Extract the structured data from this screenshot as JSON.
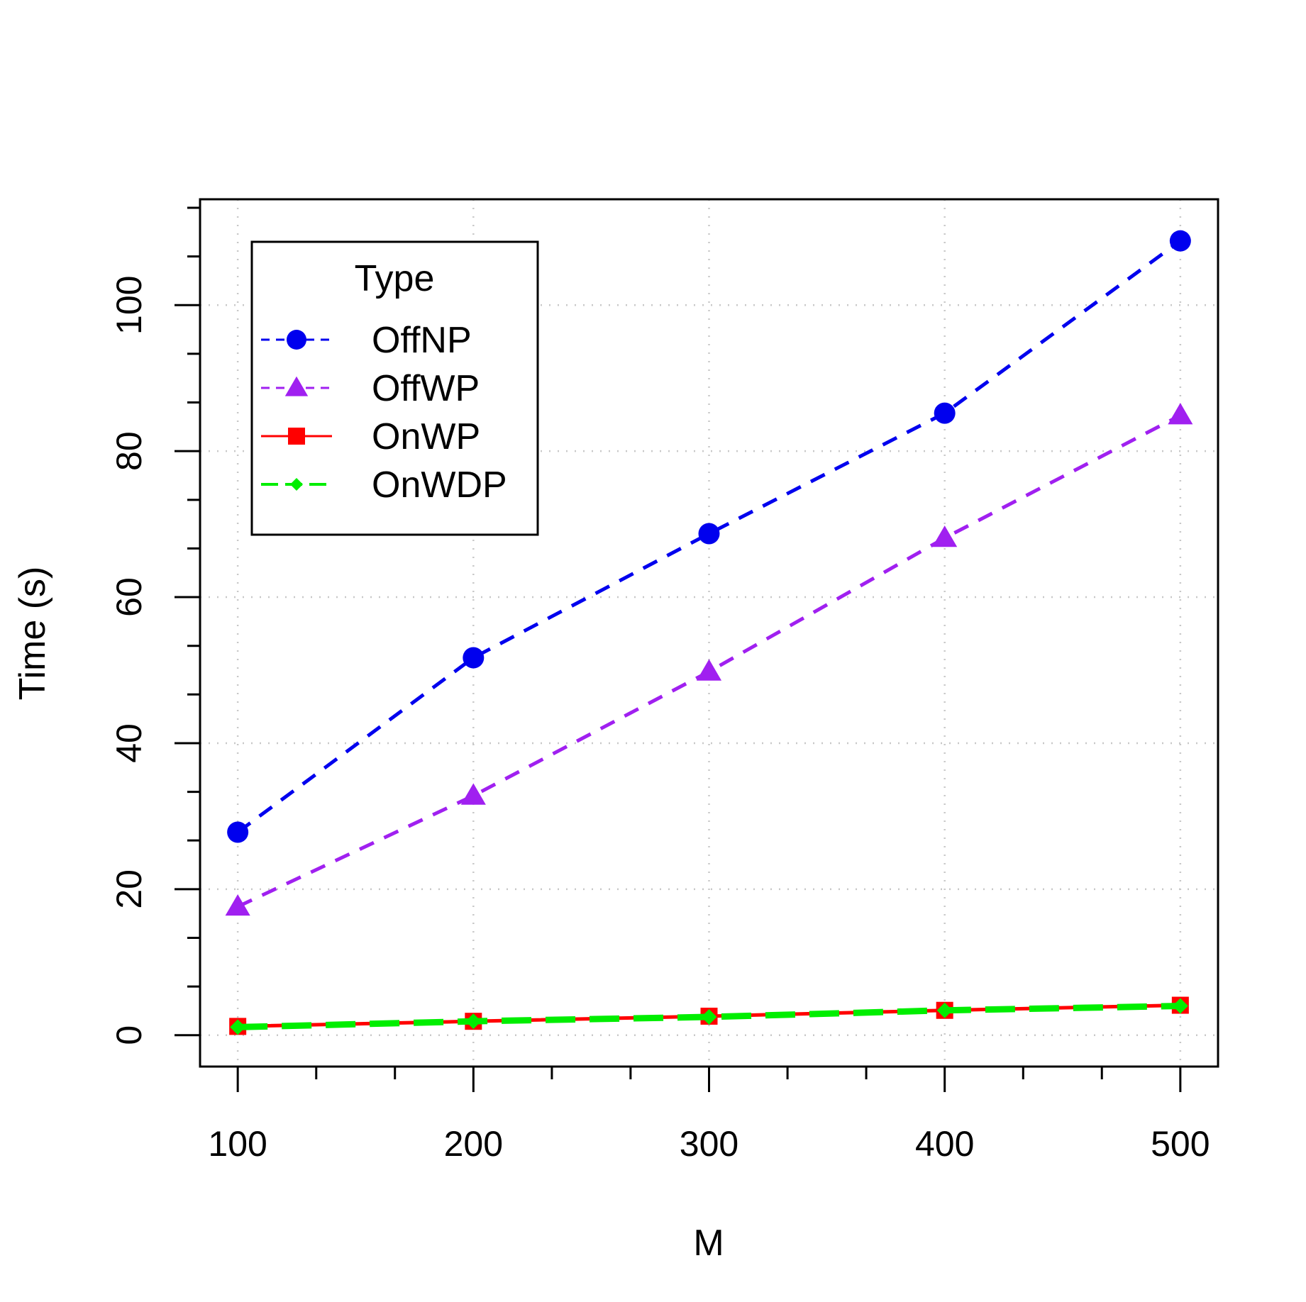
{
  "chart_data": {
    "type": "line",
    "title": "",
    "xlabel": "M",
    "ylabel": "Time (s)",
    "x": [
      100,
      200,
      300,
      400,
      500
    ],
    "xlim": [
      84,
      516
    ],
    "ylim": [
      -4.3,
      114.5
    ],
    "x_ticks": [
      100,
      200,
      300,
      400,
      500
    ],
    "x_minor_ticks": [
      133.3,
      166.7,
      233.3,
      266.7,
      333.3,
      366.7,
      433.3,
      466.7
    ],
    "y_ticks": [
      0,
      20,
      40,
      60,
      80,
      100
    ],
    "y_minor_ticks": [
      6.67,
      13.33,
      26.67,
      33.33,
      46.67,
      53.33,
      66.67,
      73.33,
      86.67,
      93.33,
      106.67,
      113.33
    ],
    "grid": true,
    "legend": {
      "title": "Type",
      "position": "top-left"
    },
    "series": [
      {
        "name": "OffNP",
        "values": [
          27.8,
          51.7,
          68.7,
          85.2,
          108.8
        ],
        "color": "#0000ee",
        "marker": "circle",
        "line": "dashed"
      },
      {
        "name": "OffWP",
        "values": [
          17.6,
          32.8,
          49.8,
          68.1,
          84.9
        ],
        "color": "#a020f0",
        "marker": "triangle",
        "line": "dashed"
      },
      {
        "name": "OnWP",
        "values": [
          1.2,
          1.9,
          2.6,
          3.4,
          4.1
        ],
        "color": "#ff0000",
        "marker": "square",
        "line": "solid"
      },
      {
        "name": "OnWDP",
        "values": [
          1.1,
          1.9,
          2.5,
          3.4,
          4.0
        ],
        "color": "#00ee00",
        "marker": "diamond",
        "line": "longdash"
      }
    ]
  }
}
